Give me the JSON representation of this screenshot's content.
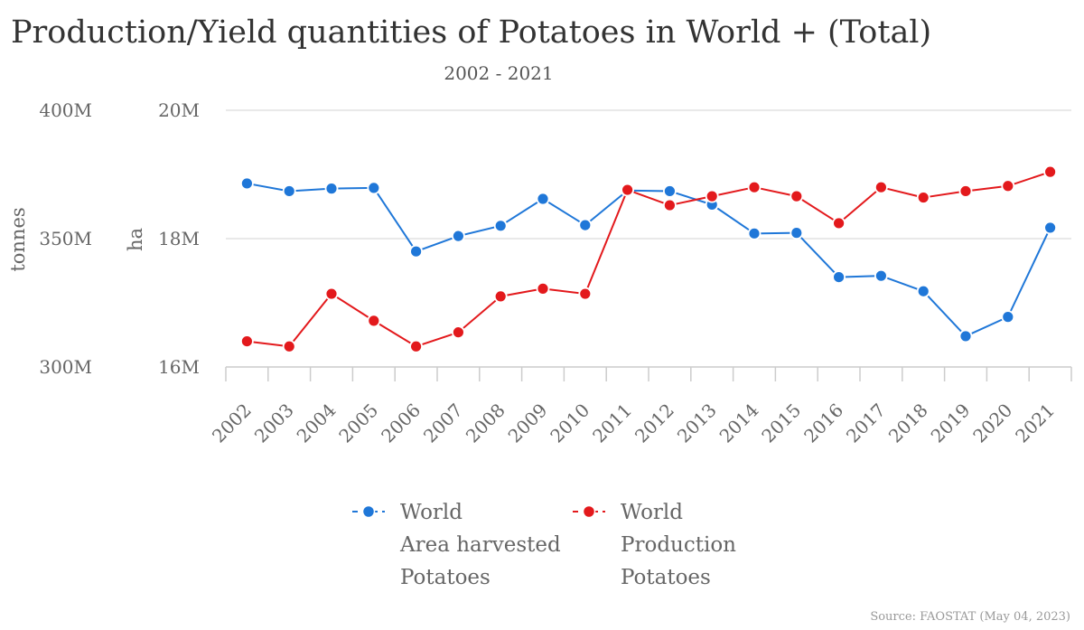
{
  "chart_data": {
    "type": "line",
    "title": "Production/Yield quantities of Potatoes in World + (Total)",
    "subtitle": "2002 - 2021",
    "source": "Source: FAOSTAT (May 04, 2023)",
    "categories": [
      "2002",
      "2003",
      "2004",
      "2005",
      "2006",
      "2007",
      "2008",
      "2009",
      "2010",
      "2011",
      "2012",
      "2013",
      "2014",
      "2015",
      "2016",
      "2017",
      "2018",
      "2019",
      "2020",
      "2021"
    ],
    "axes": {
      "left_outer": {
        "title": "tonnes",
        "ticks": [
          300000000,
          350000000,
          400000000
        ],
        "tick_labels": [
          "300M",
          "350M",
          "400M"
        ],
        "range": [
          300000000,
          400000000
        ]
      },
      "left_inner": {
        "title": "ha",
        "ticks": [
          16000000,
          18000000,
          20000000
        ],
        "tick_labels": [
          "16M",
          "18M",
          "20M"
        ],
        "range": [
          16000000,
          20000000
        ]
      }
    },
    "series": [
      {
        "name_lines": [
          "World",
          "Area harvested",
          "Potatoes"
        ],
        "axis": "left_inner",
        "color": "#1f77d8",
        "values": [
          18860000,
          18740000,
          18780000,
          18790000,
          17800000,
          18040000,
          18200000,
          18620000,
          18210000,
          18750000,
          18740000,
          18530000,
          18080000,
          18090000,
          17400000,
          17420000,
          17180000,
          16480000,
          16780000,
          18170000
        ]
      },
      {
        "name_lines": [
          "World",
          "Production",
          "Potatoes"
        ],
        "axis": "left_outer",
        "color": "#e3191c",
        "values": [
          310000000,
          308000000,
          328500000,
          318000000,
          308000000,
          313500000,
          327500000,
          330500000,
          328500000,
          369000000,
          363000000,
          366500000,
          370000000,
          366500000,
          356000000,
          370000000,
          366000000,
          368500000,
          370500000,
          376000000
        ]
      }
    ],
    "legend_position": "bottom",
    "grid": "horizontal"
  }
}
